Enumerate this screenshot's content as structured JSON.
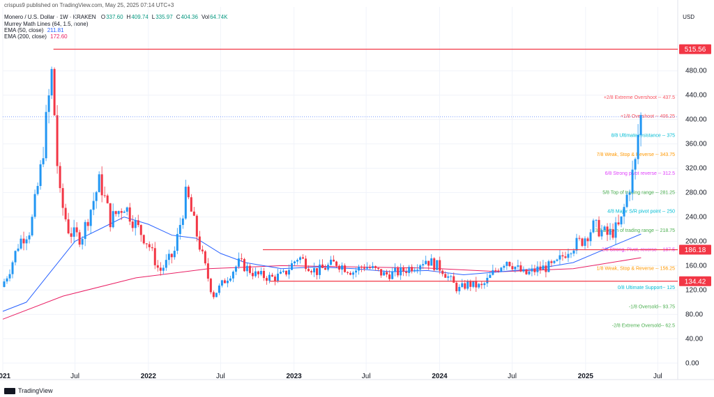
{
  "header": {
    "published": "crispus9 published on TradingView.com, May 25, 2025 07:14 UTC+3",
    "symbol": "Monero / U.S. Dollar · 1W · KRAKEN",
    "ohlc": [
      {
        "k": "O",
        "v": "337.60"
      },
      {
        "k": "H",
        "v": "409.74"
      },
      {
        "k": "L",
        "v": "335.97"
      },
      {
        "k": "C",
        "v": "404.36"
      },
      {
        "k": "Vol",
        "v": "64.74K"
      }
    ],
    "murrey": "Murrey Math Lines (64, 1.5, none)",
    "ema50": {
      "label": "EMA (50, close)",
      "value": "211.81",
      "color": "#2962ff"
    },
    "ema200": {
      "label": "EMA (200, close)",
      "value": "172.60",
      "color": "#e91e63"
    },
    "currency": "USD"
  },
  "footer": {
    "brand": "TradingView"
  },
  "colors": {
    "up": "#2196f3",
    "down": "#f23645",
    "hline": "#f23645",
    "grid": "#f0f3fa",
    "axis_text": "#131722",
    "current_price_line": "#2962ff"
  },
  "chart_data": {
    "type": "candlestick",
    "title": "Monero / U.S. Dollar · 1W · KRAKEN",
    "y_axis": {
      "label": "USD",
      "range": [
        -10,
        530
      ],
      "ticks": [
        "0.00",
        "40.00",
        "80.00",
        "120.00",
        "160.00",
        "200.00",
        "240.00",
        "280.00",
        "320.00",
        "360.00",
        "400.00",
        "440.00",
        "480.00"
      ]
    },
    "x_axis": {
      "range": [
        "2021-01-01",
        "2025-08-20"
      ],
      "ticks": [
        {
          "label": "2021",
          "date": "2021-01-01",
          "bold": true
        },
        {
          "label": "Jul",
          "date": "2021-07-01",
          "bold": false
        },
        {
          "label": "2022",
          "date": "2022-01-01",
          "bold": true
        },
        {
          "label": "Jul",
          "date": "2022-07-01",
          "bold": false
        },
        {
          "label": "2023",
          "date": "2023-01-01",
          "bold": true
        },
        {
          "label": "Jul",
          "date": "2023-07-01",
          "bold": false
        },
        {
          "label": "2024",
          "date": "2024-01-01",
          "bold": true
        },
        {
          "label": "Jul",
          "date": "2024-07-01",
          "bold": false
        },
        {
          "label": "2025",
          "date": "2025-01-01",
          "bold": true
        },
        {
          "label": "Jul",
          "date": "2025-07-01",
          "bold": false
        }
      ]
    },
    "price_path": [
      [
        "2021-01-01",
        125
      ],
      [
        "2021-01-20",
        150
      ],
      [
        "2021-02-15",
        200
      ],
      [
        "2021-03-15",
        220
      ],
      [
        "2021-04-10",
        320
      ],
      [
        "2021-05-01",
        440
      ],
      [
        "2021-05-08",
        480
      ],
      [
        "2021-05-25",
        280
      ],
      [
        "2021-06-20",
        215
      ],
      [
        "2021-07-20",
        205
      ],
      [
        "2021-09-05",
        300
      ],
      [
        "2021-10-01",
        235
      ],
      [
        "2021-11-05",
        260
      ],
      [
        "2021-12-01",
        230
      ],
      [
        "2022-01-05",
        195
      ],
      [
        "2022-02-01",
        150
      ],
      [
        "2022-03-10",
        180
      ],
      [
        "2022-04-10",
        280
      ],
      [
        "2022-05-10",
        200
      ],
      [
        "2022-06-15",
        110
      ],
      [
        "2022-07-20",
        140
      ],
      [
        "2022-08-20",
        165
      ],
      [
        "2022-10-01",
        145
      ],
      [
        "2022-11-10",
        140
      ],
      [
        "2022-12-10",
        145
      ],
      [
        "2023-01-15",
        175
      ],
      [
        "2023-03-01",
        150
      ],
      [
        "2023-04-20",
        165
      ],
      [
        "2023-06-01",
        150
      ],
      [
        "2023-07-01",
        160
      ],
      [
        "2023-08-20",
        145
      ],
      [
        "2023-10-01",
        150
      ],
      [
        "2023-12-01",
        170
      ],
      [
        "2024-01-10",
        155
      ],
      [
        "2024-02-20",
        120
      ],
      [
        "2024-03-15",
        130
      ],
      [
        "2024-04-20",
        125
      ],
      [
        "2024-05-20",
        150
      ],
      [
        "2024-06-20",
        170
      ],
      [
        "2024-08-05",
        145
      ],
      [
        "2024-09-10",
        155
      ],
      [
        "2024-10-20",
        160
      ],
      [
        "2024-11-25",
        190
      ],
      [
        "2024-12-25",
        200
      ],
      [
        "2025-01-25",
        225
      ],
      [
        "2025-03-01",
        210
      ],
      [
        "2025-04-01",
        225
      ],
      [
        "2025-04-20",
        280
      ],
      [
        "2025-05-10",
        330
      ],
      [
        "2025-05-20",
        404
      ]
    ],
    "ema50_path": [
      [
        "2021-01-01",
        85
      ],
      [
        "2021-03-01",
        100
      ],
      [
        "2021-05-01",
        150
      ],
      [
        "2021-07-01",
        200
      ],
      [
        "2021-09-01",
        220
      ],
      [
        "2021-11-01",
        240
      ],
      [
        "2022-01-01",
        228
      ],
      [
        "2022-03-01",
        210
      ],
      [
        "2022-05-01",
        205
      ],
      [
        "2022-07-01",
        180
      ],
      [
        "2022-09-01",
        165
      ],
      [
        "2022-12-01",
        155
      ],
      [
        "2023-03-01",
        158
      ],
      [
        "2023-06-01",
        155
      ],
      [
        "2023-09-01",
        150
      ],
      [
        "2023-12-01",
        152
      ],
      [
        "2024-03-01",
        145
      ],
      [
        "2024-06-01",
        150
      ],
      [
        "2024-09-01",
        155
      ],
      [
        "2024-12-01",
        165
      ],
      [
        "2025-03-01",
        190
      ],
      [
        "2025-05-20",
        212
      ]
    ],
    "ema200_path": [
      [
        "2021-01-01",
        72
      ],
      [
        "2021-06-01",
        110
      ],
      [
        "2021-12-01",
        140
      ],
      [
        "2022-06-01",
        155
      ],
      [
        "2022-12-01",
        160
      ],
      [
        "2023-06-01",
        158
      ],
      [
        "2023-12-01",
        156
      ],
      [
        "2024-06-01",
        150
      ],
      [
        "2024-12-01",
        155
      ],
      [
        "2025-05-20",
        173
      ]
    ],
    "current_price": 404.36,
    "horizontal_lines": [
      {
        "price": 515.56,
        "label": "515.56",
        "from": "2021-05-08"
      },
      {
        "price": 186.18,
        "label": "186.18",
        "from": "2022-10-15"
      },
      {
        "price": 134.42,
        "label": "134.42",
        "from": "2022-11-01"
      }
    ],
    "murrey_levels": [
      {
        "label": "+2/8 Extreme Overshoot --",
        "value": "437.5",
        "price": 437.5,
        "color": "#f7525f"
      },
      {
        "label": "+1/8 Overshoot --",
        "value": "406.25",
        "price": 406.25,
        "color": "#f7525f"
      },
      {
        "label": "8/8 Ultimate resistance --",
        "value": "375",
        "price": 375,
        "color": "#00bcd4"
      },
      {
        "label": "7/8 Weak, Stop & Reverse --",
        "value": "343.75",
        "price": 343.75,
        "color": "#ff9800"
      },
      {
        "label": "6/8 Strong pivot reverse --",
        "value": "312.5",
        "price": 312.5,
        "color": "#e040fb"
      },
      {
        "label": "5/8 Top of trading range --",
        "value": "281.25",
        "price": 281.25,
        "color": "#4caf50"
      },
      {
        "label": "4/8 Major S/R pivot point --",
        "value": "250",
        "price": 250,
        "color": "#00bcd4"
      },
      {
        "label": "3/8 Bottom of trading range --",
        "value": "218.75",
        "price": 218.75,
        "color": "#4caf50"
      },
      {
        "label": "2/8 Strong, Pivot, reverse --",
        "value": "187.5",
        "price": 187.5,
        "color": "#e040fb"
      },
      {
        "label": "1/8 Weak, Stop & Reverse --",
        "value": "156.25",
        "price": 156.25,
        "color": "#ff9800"
      },
      {
        "label": "0/8 Ultimate Support--",
        "value": "125",
        "price": 125,
        "color": "#00bcd4"
      },
      {
        "label": "-1/8 Oversold--",
        "value": "93.75",
        "price": 93.75,
        "color": "#4caf50"
      },
      {
        "label": "-2/8 Extreme Oversold--",
        "value": "62.5",
        "price": 62.5,
        "color": "#4caf50"
      }
    ]
  }
}
